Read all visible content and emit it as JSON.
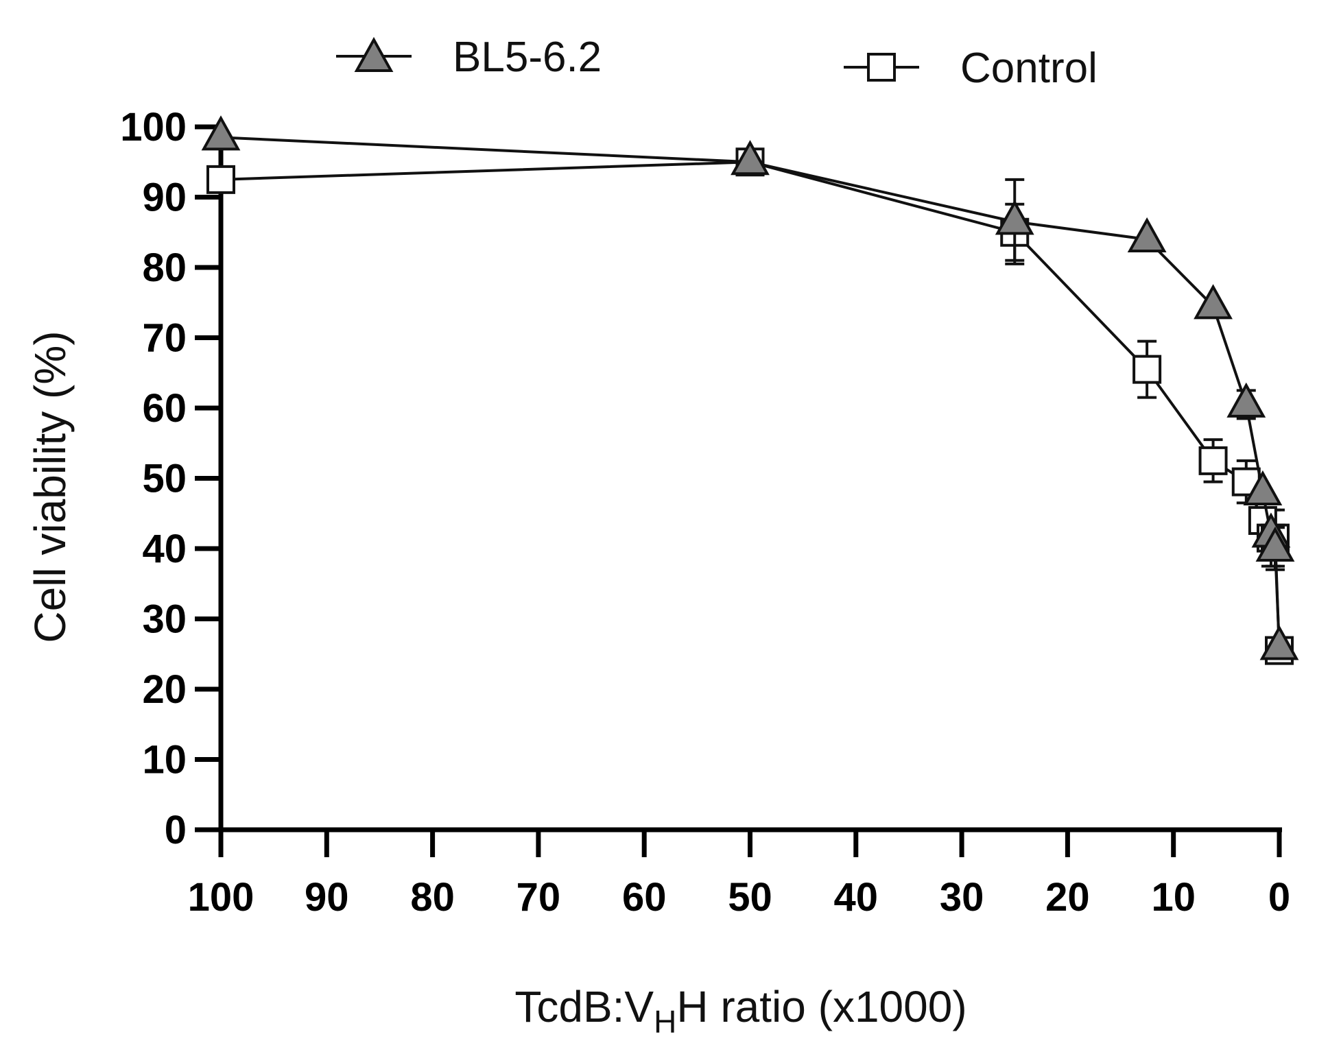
{
  "chart_data": {
    "type": "line",
    "title": "",
    "xlabel": {
      "prefix": "TcdB:V",
      "subscript": "H",
      "suffix": "H  ratio  (x1000)"
    },
    "ylabel": "Cell viability (%)",
    "xlim": [
      100,
      0
    ],
    "x_reversed": true,
    "ylim": [
      0,
      100
    ],
    "x_ticks": [
      100,
      90,
      80,
      70,
      60,
      50,
      40,
      30,
      20,
      10,
      0
    ],
    "y_ticks": [
      0,
      10,
      20,
      30,
      40,
      50,
      60,
      70,
      80,
      90,
      100
    ],
    "grid": false,
    "legend_position": "top",
    "series": [
      {
        "name": "BL5-6.2",
        "marker": "triangle",
        "color": "#808080",
        "x": [
          100,
          50,
          25,
          12.5,
          6.25,
          3.125,
          1.5625,
          0.78,
          0.39,
          0
        ],
        "y": [
          98.5,
          95,
          86.5,
          84,
          74.5,
          60.5,
          48,
          42,
          40,
          26
        ],
        "error": [
          0,
          0,
          6,
          0,
          0,
          2,
          0,
          0,
          3,
          0
        ]
      },
      {
        "name": "Control",
        "marker": "square",
        "color": "#ffffff",
        "x": [
          100,
          50,
          25,
          12.5,
          6.25,
          3.125,
          1.5625,
          0.78,
          0.39,
          0
        ],
        "y": [
          92.5,
          95,
          85,
          65.5,
          52.5,
          49.5,
          44,
          41.5,
          41.5,
          25.5
        ],
        "error": [
          0,
          0,
          4,
          4,
          3,
          3,
          0,
          4,
          4,
          0
        ]
      }
    ]
  }
}
